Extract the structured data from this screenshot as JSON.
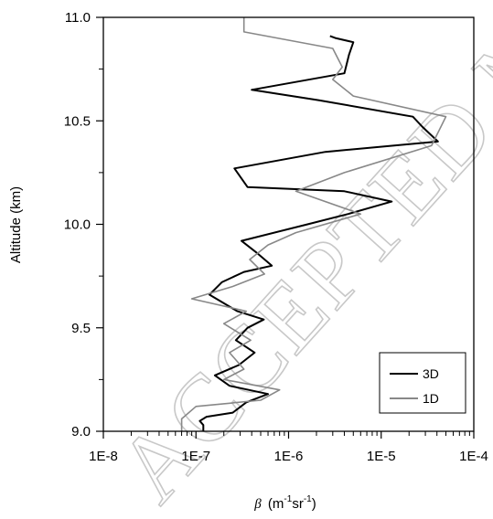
{
  "watermark": "ACCEPTED MANUSCRIPT",
  "chart_data": {
    "type": "line",
    "xlabel_symbol": "β",
    "xlabel_units": "(m-1sr-1)",
    "ylabel": "Altitude (km)",
    "xscale": "log",
    "xlim": [
      1e-08,
      0.0001
    ],
    "ylim": [
      9.0,
      11.0
    ],
    "xtick_labels": [
      "1E-8",
      "1E-7",
      "1E-6",
      "1E-5",
      "1E-4"
    ],
    "ytick_labels": [
      "9.0",
      "9.5",
      "10.0",
      "10.5",
      "11.0"
    ],
    "grid": false,
    "legend_position": "bottom-right",
    "series": [
      {
        "name": "3D",
        "color": "#000000",
        "points": [
          [
            1.2e-07,
            9.0
          ],
          [
            1.2e-07,
            9.03
          ],
          [
            1.1e-07,
            9.05
          ],
          [
            1.3e-07,
            9.07
          ],
          [
            2.5e-07,
            9.09
          ],
          [
            3.5e-07,
            9.14
          ],
          [
            6e-07,
            9.18
          ],
          [
            2.3e-07,
            9.22
          ],
          [
            1.6e-07,
            9.27
          ],
          [
            2.9e-07,
            9.32
          ],
          [
            4.3e-07,
            9.38
          ],
          [
            2.7e-07,
            9.44
          ],
          [
            3.6e-07,
            9.5
          ],
          [
            5.4e-07,
            9.54
          ],
          [
            2.8e-07,
            9.58
          ],
          [
            1.4e-07,
            9.66
          ],
          [
            1.9e-07,
            9.72
          ],
          [
            3.3e-07,
            9.77
          ],
          [
            6.6e-07,
            9.8
          ],
          [
            4.6e-07,
            9.86
          ],
          [
            3.1e-07,
            9.92
          ],
          [
            1.6e-06,
            10.0
          ],
          [
            4.4e-06,
            10.05
          ],
          [
            1.3e-05,
            10.11
          ],
          [
            4e-06,
            10.16
          ],
          [
            3.6e-07,
            10.18
          ],
          [
            2.6e-07,
            10.27
          ],
          [
            2.5e-06,
            10.35
          ],
          [
            4.1e-05,
            10.4
          ],
          [
            2.8e-05,
            10.47
          ],
          [
            2.2e-05,
            10.52
          ],
          [
            2.1e-06,
            10.6
          ],
          [
            4e-07,
            10.65
          ],
          [
            4e-06,
            10.73
          ],
          [
            4.5e-06,
            10.82
          ],
          [
            5e-06,
            10.88
          ],
          [
            3.2e-06,
            10.9
          ],
          [
            2.8e-06,
            10.91
          ]
        ]
      },
      {
        "name": "1D",
        "color": "#888888",
        "points": [
          [
            7e-08,
            9.0
          ],
          [
            7e-08,
            9.06
          ],
          [
            1e-07,
            9.12
          ],
          [
            5e-07,
            9.15
          ],
          [
            8e-07,
            9.2
          ],
          [
            2e-07,
            9.25
          ],
          [
            3.3e-07,
            9.3
          ],
          [
            2.3e-07,
            9.38
          ],
          [
            3.9e-07,
            9.44
          ],
          [
            2e-07,
            9.52
          ],
          [
            3.5e-07,
            9.58
          ],
          [
            9e-08,
            9.64
          ],
          [
            2.5e-07,
            9.7
          ],
          [
            5.5e-07,
            9.76
          ],
          [
            3.8e-07,
            9.83
          ],
          [
            6e-07,
            9.9
          ],
          [
            1.2e-06,
            9.96
          ],
          [
            6e-06,
            10.05
          ],
          [
            1.2e-06,
            10.16
          ],
          [
            4e-06,
            10.25
          ],
          [
            3.5e-05,
            10.38
          ],
          [
            5e-05,
            10.52
          ],
          [
            5e-06,
            10.62
          ],
          [
            3e-06,
            10.7
          ],
          [
            3.8e-06,
            10.76
          ],
          [
            3e-06,
            10.85
          ],
          [
            3.3e-07,
            10.93
          ],
          [
            3.3e-07,
            11.0
          ]
        ]
      }
    ]
  }
}
